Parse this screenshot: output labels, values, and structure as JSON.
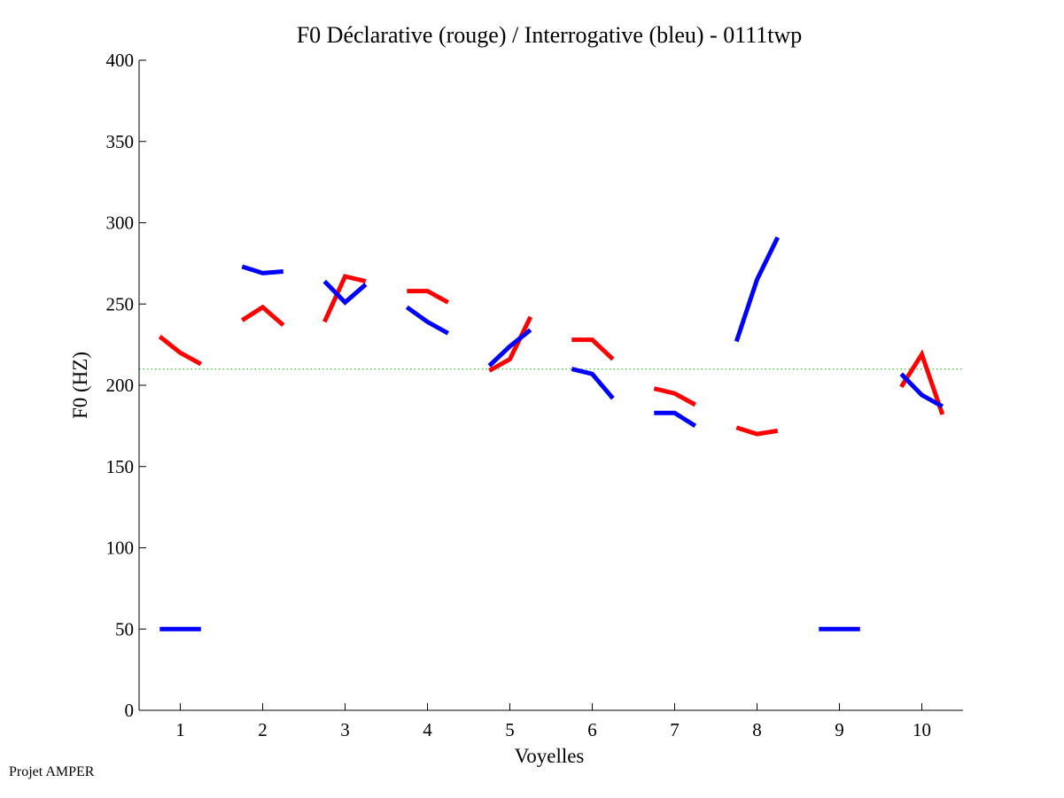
{
  "footer": "Projet AMPER",
  "chart_data": {
    "type": "line",
    "title": "F0 Déclarative (rouge) / Interrogative (bleu) - 0111twp",
    "xlabel": "Voyelles",
    "ylabel": "F0 (HZ)",
    "xlim": [
      0.5,
      10.5
    ],
    "ylim": [
      0,
      400
    ],
    "xticks": [
      1,
      2,
      3,
      4,
      5,
      6,
      7,
      8,
      9,
      10
    ],
    "yticks": [
      0,
      50,
      100,
      150,
      200,
      250,
      300,
      350,
      400
    ],
    "reference_line": {
      "y": 210,
      "color": "#33cc33",
      "style": "dotted"
    },
    "series": [
      {
        "name": "Déclarative",
        "color": "#ff0000",
        "segments": [
          [
            [
              0.75,
              230
            ],
            [
              1.0,
              220
            ],
            [
              1.25,
              213
            ]
          ],
          [
            [
              1.75,
              240
            ],
            [
              2.0,
              248
            ],
            [
              2.25,
              237
            ]
          ],
          [
            [
              2.75,
              239
            ],
            [
              3.0,
              267
            ],
            [
              3.25,
              264
            ]
          ],
          [
            [
              3.75,
              258
            ],
            [
              4.0,
              258
            ],
            [
              4.25,
              251
            ]
          ],
          [
            [
              4.75,
              209
            ],
            [
              5.0,
              216
            ],
            [
              5.25,
              242
            ]
          ],
          [
            [
              5.75,
              228
            ],
            [
              6.0,
              228
            ],
            [
              6.25,
              216
            ]
          ],
          [
            [
              6.75,
              198
            ],
            [
              7.0,
              195
            ],
            [
              7.25,
              188
            ]
          ],
          [
            [
              7.75,
              174
            ],
            [
              8.0,
              170
            ],
            [
              8.25,
              172
            ]
          ],
          [
            [
              9.75,
              199
            ],
            [
              10.0,
              219
            ],
            [
              10.25,
              182
            ]
          ]
        ]
      },
      {
        "name": "Interrogative",
        "color": "#0000ff",
        "segments": [
          [
            [
              0.75,
              50
            ],
            [
              1.0,
              50
            ],
            [
              1.25,
              50
            ]
          ],
          [
            [
              1.75,
              273
            ],
            [
              2.0,
              269
            ],
            [
              2.25,
              270
            ]
          ],
          [
            [
              2.75,
              264
            ],
            [
              3.0,
              251
            ],
            [
              3.25,
              262
            ]
          ],
          [
            [
              3.75,
              248
            ],
            [
              4.0,
              239
            ],
            [
              4.25,
              232
            ]
          ],
          [
            [
              4.75,
              212
            ],
            [
              5.0,
              224
            ],
            [
              5.25,
              234
            ]
          ],
          [
            [
              5.75,
              210
            ],
            [
              6.0,
              207
            ],
            [
              6.25,
              192
            ]
          ],
          [
            [
              6.75,
              183
            ],
            [
              7.0,
              183
            ],
            [
              7.25,
              175
            ]
          ],
          [
            [
              7.75,
              227
            ],
            [
              8.0,
              265
            ],
            [
              8.25,
              291
            ]
          ],
          [
            [
              8.75,
              50
            ],
            [
              9.0,
              50
            ],
            [
              9.25,
              50
            ]
          ],
          [
            [
              9.75,
              207
            ],
            [
              10.0,
              194
            ],
            [
              10.25,
              187
            ]
          ]
        ]
      }
    ]
  }
}
